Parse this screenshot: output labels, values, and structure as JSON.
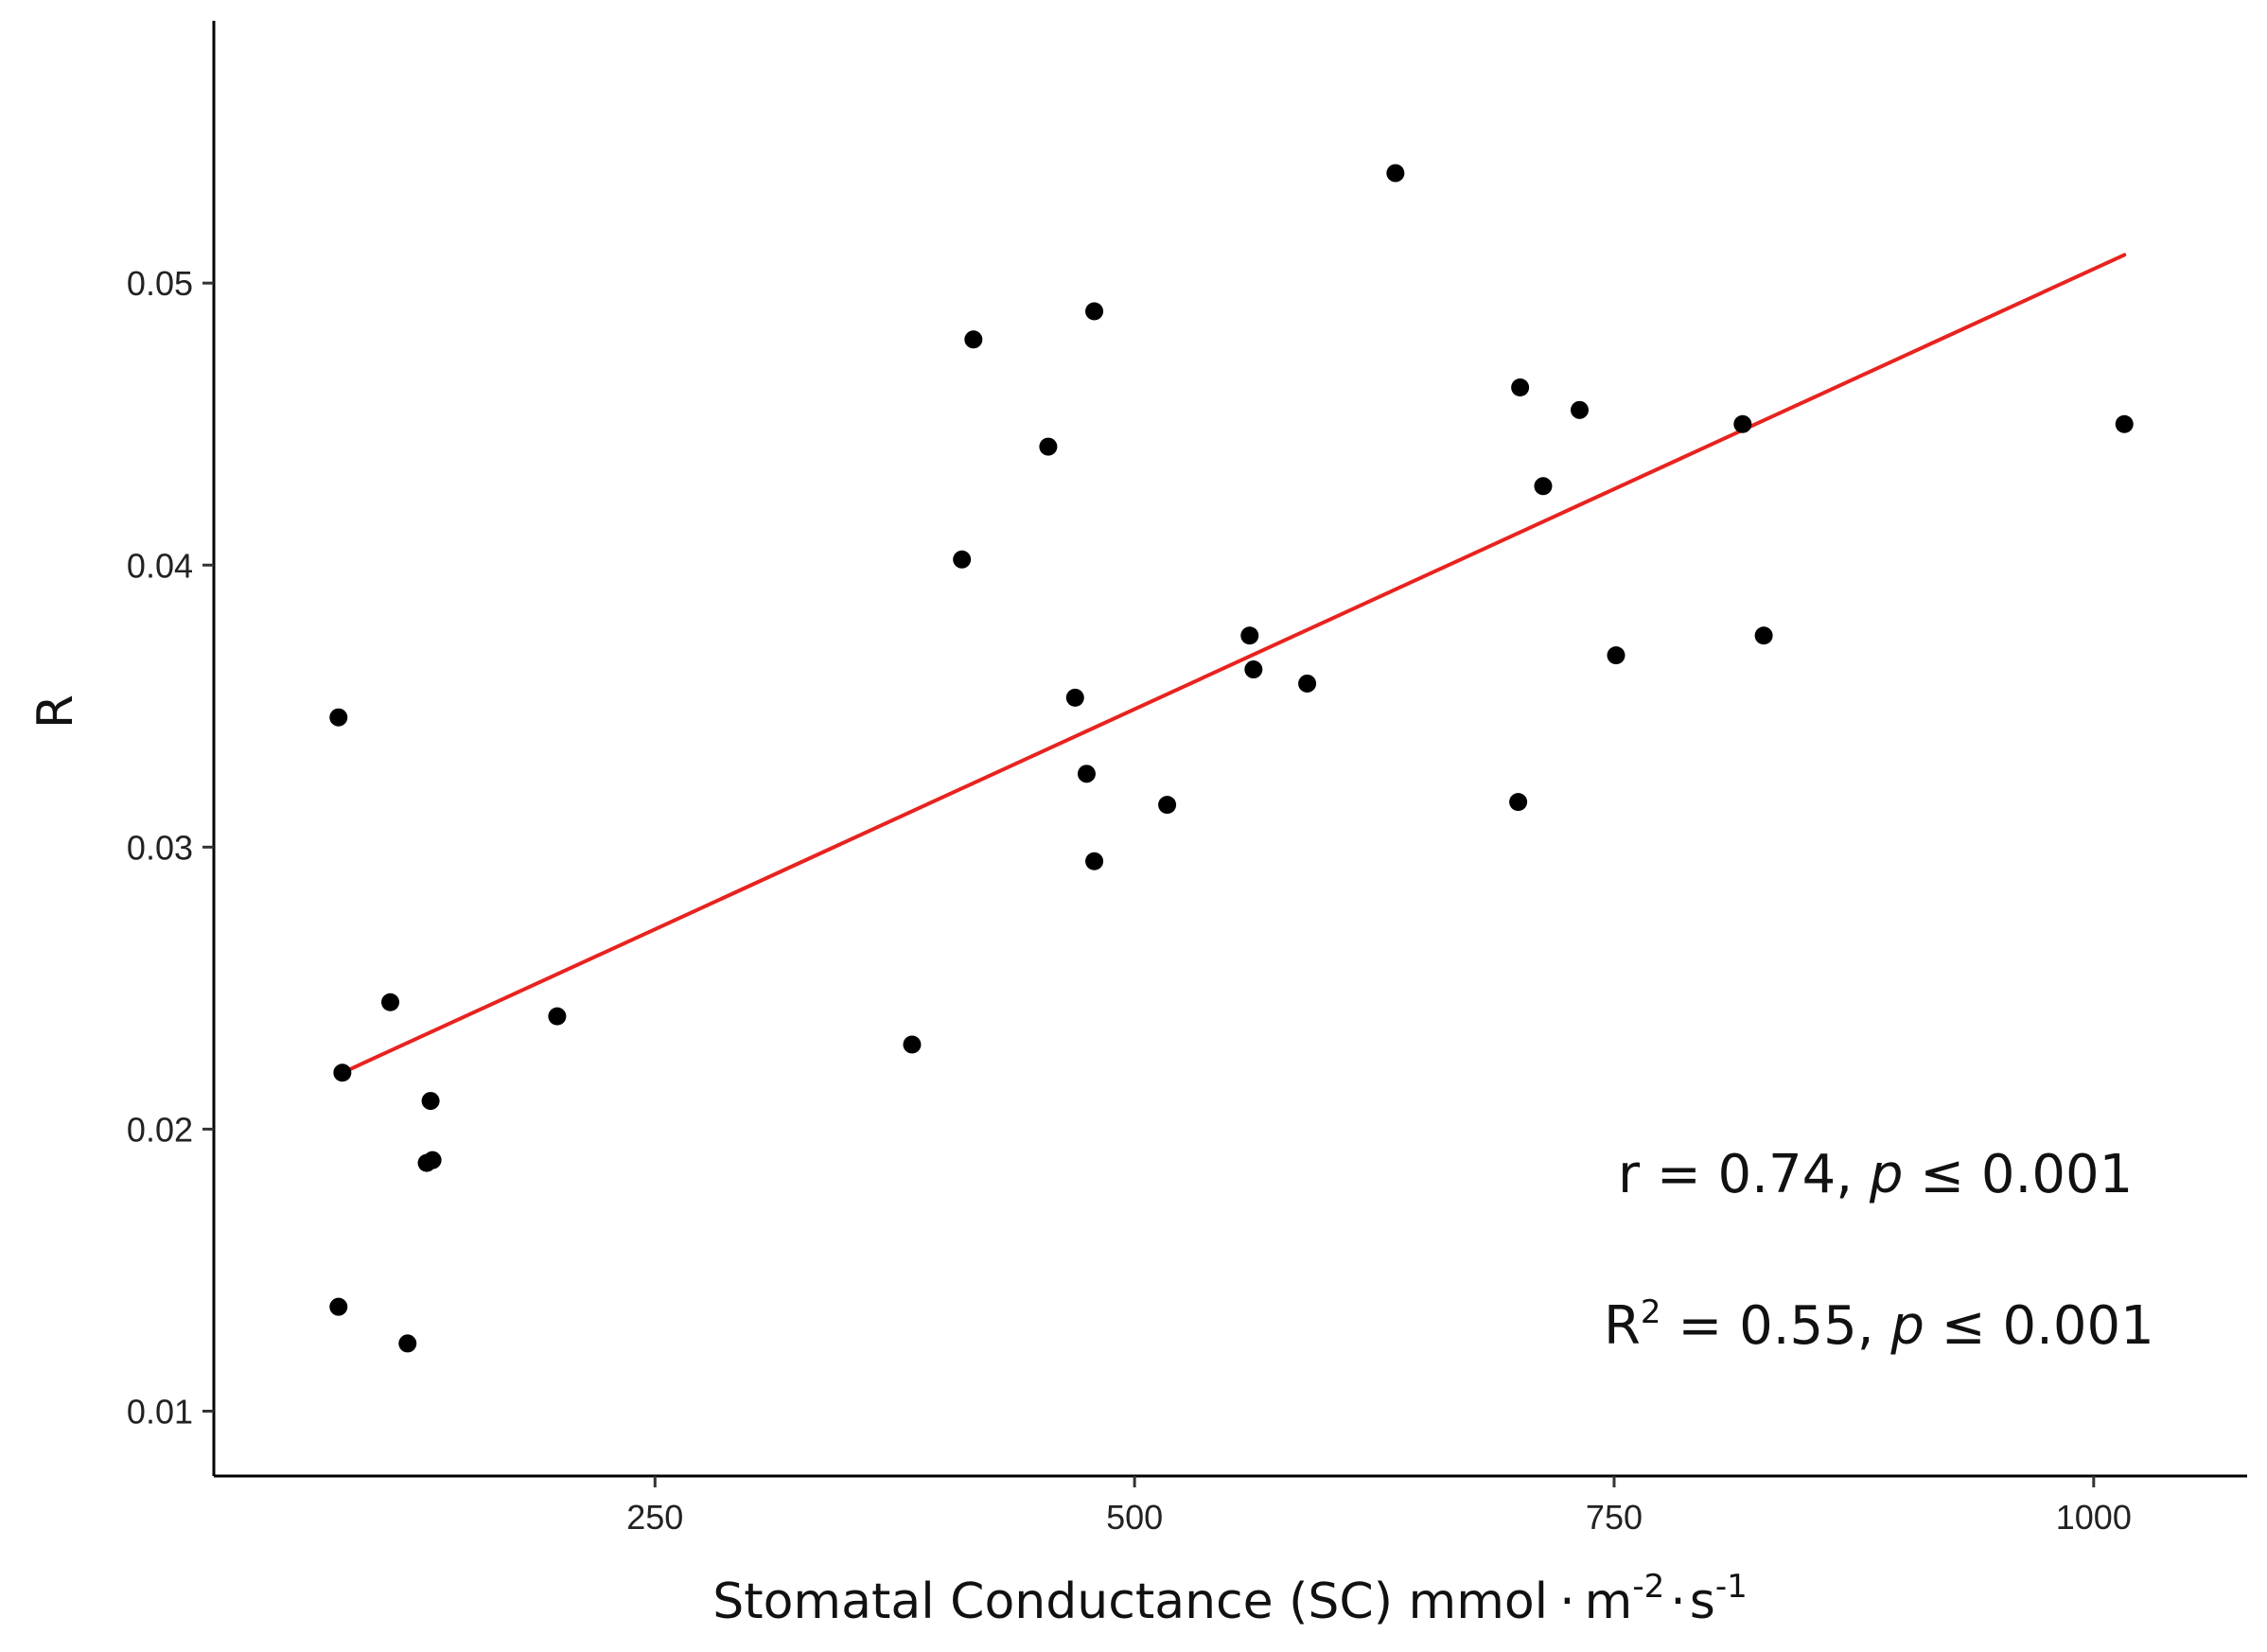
{
  "chart_data": {
    "type": "scatter",
    "title": "",
    "xlabel": {
      "main": "Stomatal Conductance (SC) mmol",
      "dot": "·",
      "unit1": "m",
      "unit1_exp": "-2",
      "unit2": "s",
      "unit2_exp": "-1"
    },
    "ylabel": "R",
    "xlim": [
      20,
      1080
    ],
    "ylim": [
      0.0077,
      0.0593
    ],
    "x_ticks": [
      250,
      500,
      750,
      1000
    ],
    "x_tick_labels": [
      "250",
      "500",
      "750",
      "1000"
    ],
    "y_ticks": [
      0.01,
      0.02,
      0.03,
      0.04,
      0.05
    ],
    "y_tick_labels": [
      "0.01",
      "0.02",
      "0.03",
      "0.04",
      "0.05"
    ],
    "grid": false,
    "points": [
      {
        "x": 85,
        "y": 0.0346
      },
      {
        "x": 87,
        "y": 0.022
      },
      {
        "x": 85,
        "y": 0.0137
      },
      {
        "x": 112,
        "y": 0.0245
      },
      {
        "x": 121,
        "y": 0.0124
      },
      {
        "x": 133,
        "y": 0.021
      },
      {
        "x": 131,
        "y": 0.0188
      },
      {
        "x": 134,
        "y": 0.0189
      },
      {
        "x": 199,
        "y": 0.024
      },
      {
        "x": 384,
        "y": 0.023
      },
      {
        "x": 410,
        "y": 0.0402
      },
      {
        "x": 416,
        "y": 0.048
      },
      {
        "x": 455,
        "y": 0.0442
      },
      {
        "x": 469,
        "y": 0.0353
      },
      {
        "x": 475,
        "y": 0.0326
      },
      {
        "x": 479,
        "y": 0.049
      },
      {
        "x": 479,
        "y": 0.0295
      },
      {
        "x": 517,
        "y": 0.0315
      },
      {
        "x": 560,
        "y": 0.0375
      },
      {
        "x": 562,
        "y": 0.0363
      },
      {
        "x": 590,
        "y": 0.0358
      },
      {
        "x": 636,
        "y": 0.0539
      },
      {
        "x": 700,
        "y": 0.0316
      },
      {
        "x": 701,
        "y": 0.0463
      },
      {
        "x": 713,
        "y": 0.0428
      },
      {
        "x": 732,
        "y": 0.0455
      },
      {
        "x": 751,
        "y": 0.0368
      },
      {
        "x": 817,
        "y": 0.045
      },
      {
        "x": 828,
        "y": 0.0375
      },
      {
        "x": 1016,
        "y": 0.045
      }
    ],
    "fit_line": {
      "x": [
        87,
        1016
      ],
      "y": [
        0.022,
        0.051
      ],
      "color": "#e8231f"
    },
    "point_color": "#000000",
    "annotations": {
      "r_prefix": "r = 0.74, ",
      "p_symbol": "p",
      "r_suffix": " ≤ 0.001",
      "r2_base": "R",
      "r2_exp": "2",
      "r2_mid": " = 0.55, ",
      "r2_suffix": " ≤ 0.001"
    }
  }
}
